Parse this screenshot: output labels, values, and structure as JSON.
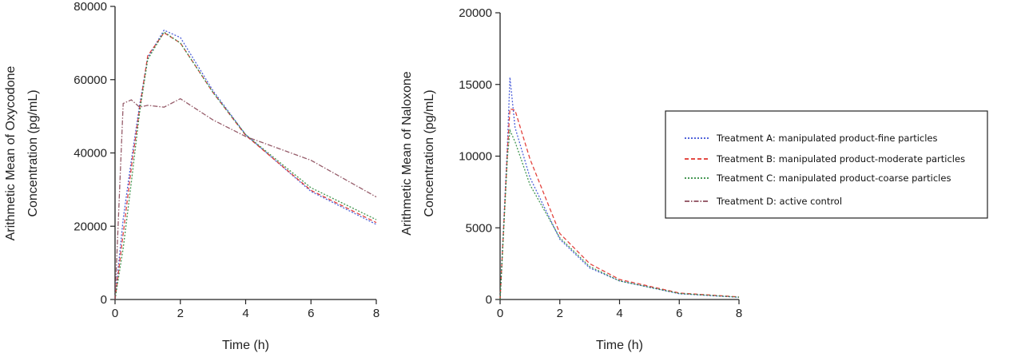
{
  "legend": {
    "entries": [
      {
        "label": "Treatment A: manipulated product-fine particles",
        "color": "#3a4fd6",
        "dash": "dot"
      },
      {
        "label": "Treatment B: manipulated product-moderate particles",
        "color": "#e0302a",
        "dash": "dash"
      },
      {
        "label": "Treatment C: manipulated product-coarse particles",
        "color": "#2e8b3e",
        "dash": "dot"
      },
      {
        "label": "Treatment D: active control",
        "color": "#8b4a5a",
        "dash": "dashdot"
      }
    ]
  },
  "chart_data": [
    {
      "type": "line",
      "xlabel": "Time (h)",
      "ylabel_lines": [
        "Arithmetic Mean of Oxycodone",
        "Concentration (pg/mL)"
      ],
      "xlim": [
        0,
        8
      ],
      "ylim": [
        0,
        80000
      ],
      "xticks": [
        0,
        2,
        4,
        6,
        8
      ],
      "yticks": [
        0,
        20000,
        40000,
        60000,
        80000
      ],
      "grid": false,
      "series": [
        {
          "name": "Treatment A: manipulated product-fine particles",
          "color": "#3a4fd6",
          "x": [
            0,
            0.25,
            0.5,
            0.75,
            1,
            1.5,
            2,
            3,
            4,
            6,
            8
          ],
          "y": [
            0,
            22000,
            38000,
            53000,
            66000,
            73500,
            71500,
            57000,
            45000,
            29500,
            20500
          ]
        },
        {
          "name": "Treatment B: manipulated product-moderate particles",
          "color": "#e0302a",
          "x": [
            0,
            0.25,
            0.5,
            0.75,
            1,
            1.5,
            2,
            3,
            4,
            6,
            8
          ],
          "y": [
            0,
            18000,
            36000,
            52000,
            66500,
            72800,
            70000,
            56500,
            44800,
            29800,
            21000
          ]
        },
        {
          "name": "Treatment C: manipulated product-coarse particles",
          "color": "#2e8b3e",
          "x": [
            0,
            0.25,
            0.5,
            0.75,
            1,
            1.5,
            2,
            3,
            4,
            6,
            8
          ],
          "y": [
            0,
            14000,
            32000,
            51000,
            65500,
            73000,
            70000,
            56500,
            45000,
            30500,
            21800
          ]
        },
        {
          "name": "Treatment D: active control",
          "color": "#8b4a5a",
          "x": [
            0,
            0.25,
            0.5,
            0.75,
            1,
            1.5,
            2,
            3,
            4,
            6,
            8
          ],
          "y": [
            0,
            53500,
            54500,
            52500,
            53000,
            52500,
            54800,
            49000,
            44500,
            38000,
            28000
          ]
        }
      ]
    },
    {
      "type": "line",
      "xlabel": "Time (h)",
      "ylabel_lines": [
        "Arithmetic Mean of Naloxone",
        "Concentration (pg/mL)"
      ],
      "xlim": [
        0,
        8
      ],
      "ylim": [
        0,
        20000
      ],
      "xticks": [
        0,
        2,
        4,
        6,
        8
      ],
      "yticks": [
        0,
        5000,
        10000,
        15000,
        20000
      ],
      "grid": false,
      "series": [
        {
          "name": "Treatment A: manipulated product-fine particles",
          "color": "#3a4fd6",
          "x": [
            0,
            0.25,
            0.33,
            0.5,
            1,
            2,
            3,
            4,
            6,
            8
          ],
          "y": [
            0,
            11000,
            15500,
            12000,
            8500,
            4200,
            2200,
            1300,
            400,
            150
          ]
        },
        {
          "name": "Treatment B: manipulated product-moderate particles",
          "color": "#e0302a",
          "x": [
            0,
            0.25,
            0.33,
            0.5,
            1,
            2,
            3,
            4,
            6,
            8
          ],
          "y": [
            0,
            10500,
            13300,
            13200,
            9800,
            4600,
            2500,
            1400,
            450,
            180
          ]
        },
        {
          "name": "Treatment C: manipulated product-coarse particles",
          "color": "#2e8b3e",
          "x": [
            0,
            0.25,
            0.33,
            0.5,
            1,
            2,
            3,
            4,
            6,
            8
          ],
          "y": [
            0,
            10000,
            11800,
            11000,
            8000,
            4300,
            2300,
            1300,
            420,
            160
          ]
        }
      ]
    }
  ]
}
